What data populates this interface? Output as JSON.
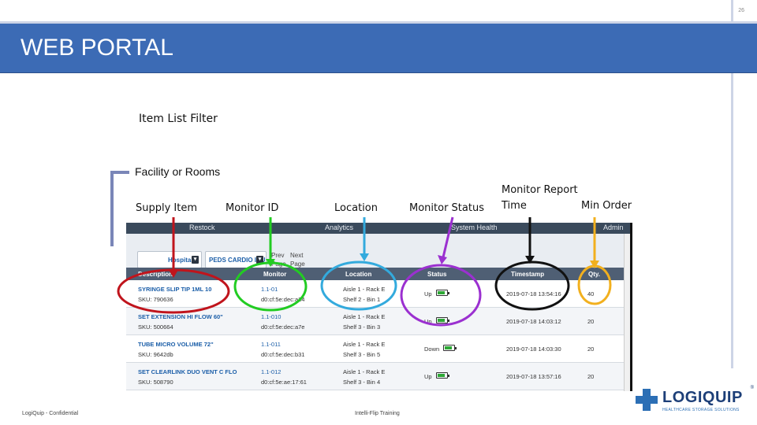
{
  "slide": {
    "page_number": "26",
    "title": "WEB PORTAL",
    "subtitle": "Item List Filter",
    "facility_label": "Facility or Rooms",
    "footer_left": "LogiQuip - Confidential",
    "footer_center": "Intelli-Flip Training"
  },
  "callouts": {
    "supply_item": "Supply Item",
    "monitor_id": "Monitor ID",
    "location": "Location",
    "monitor_status": "Monitor Status",
    "report_time_line1": "Monitor Report",
    "report_time_line2": "Time",
    "min_order": "Min Order"
  },
  "callout_colors": {
    "supply_item": "#c0141c",
    "monitor_id": "#22cc22",
    "location": "#33aadd",
    "monitor_status": "#9b30d0",
    "report_time": "#111111",
    "min_order": "#f2b01e"
  },
  "screen": {
    "nav": [
      "Restock",
      "Analytics",
      "System Health",
      "Admin"
    ],
    "filters": {
      "facility": "Hospital",
      "room": "PEDS CARDIO ICU",
      "pager_prev_1": "Prev",
      "pager_prev_2": "Page",
      "pager_next_1": "Next",
      "pager_next_2": "Page"
    },
    "columns": [
      "Description",
      "Monitor",
      "Location",
      "Status",
      "Timestamp",
      "Qty."
    ],
    "rows": [
      {
        "description": "SYRINGE SLIP TIP 1ML 10",
        "sku": "SKU: 790636",
        "monitor_id": "1.1-01",
        "monitor_sub": "d0:cf:5e:dec:a24",
        "loc1": "Aisle 1 - Rack E",
        "loc2": "Shelf 2 - Bin 1",
        "status": "Up",
        "battery": 0.7,
        "timestamp": "2019-07-18 13:54:16",
        "qty": "40"
      },
      {
        "description": "SET EXTENSION HI FLOW 60\"",
        "sku": "SKU: 500664",
        "monitor_id": "1.1-010",
        "monitor_sub": "d0:cf:5e:dec:a7e",
        "loc1": "Aisle 1 - Rack E",
        "loc2": "Shelf 3 - Bin 3",
        "status": "Up",
        "battery": 0.7,
        "timestamp": "2019-07-18 14:03:12",
        "qty": "20"
      },
      {
        "description": "TUBE MICRO VOLUME 72\"",
        "sku": "SKU: 9642db",
        "monitor_id": "1.1-011",
        "monitor_sub": "d0:cf:5e:dec:b31",
        "loc1": "Aisle 1 - Rack E",
        "loc2": "Shelf 3 - Bin 5",
        "status": "Down",
        "battery": 0.7,
        "timestamp": "2019-07-18 14:03:30",
        "qty": "20"
      },
      {
        "description": "SET CLEARLINK DUO VENT C FLO",
        "sku": "SKU: 508790",
        "monitor_id": "1.1-012",
        "monitor_sub": "d0:cf:5e:ae:17:61",
        "loc1": "Aisle 1 - Rack E",
        "loc2": "Shelf 3 - Bin 4",
        "status": "Up",
        "battery": 0.7,
        "timestamp": "2019-07-18 13:57:16",
        "qty": "20"
      }
    ]
  },
  "logo": {
    "word": "LOGIQUIP",
    "tagline": "HEALTHCARE STORAGE SOLUTIONS",
    "reg": "®"
  }
}
